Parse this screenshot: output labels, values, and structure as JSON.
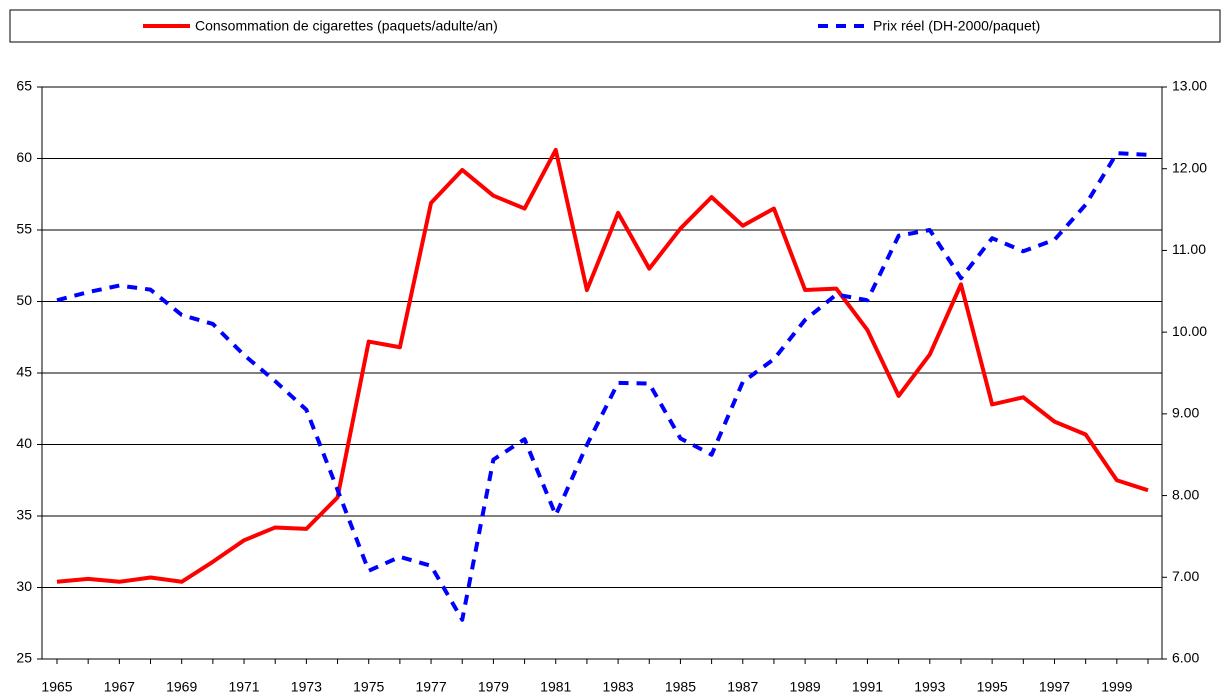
{
  "chart_data": {
    "type": "line",
    "categories": [
      1965,
      null,
      1967,
      null,
      1969,
      null,
      1971,
      null,
      1973,
      null,
      1975,
      null,
      1977,
      null,
      1979,
      null,
      1981,
      null,
      1983,
      null,
      1985,
      null,
      1987,
      null,
      1989,
      null,
      1991,
      null,
      1993,
      null,
      1995,
      null,
      1997,
      null,
      1999,
      null
    ],
    "series": [
      {
        "name": "Consommation de cigarettes (paquets/adulte/an)",
        "color": "#ff0000",
        "style": "solid",
        "axis": "y",
        "values": [
          30.4,
          30.6,
          30.4,
          30.7,
          30.4,
          31.8,
          33.3,
          34.2,
          34.1,
          36.3,
          47.2,
          46.8,
          56.9,
          59.2,
          57.4,
          56.5,
          60.6,
          50.8,
          56.2,
          52.3,
          55.1,
          57.3,
          55.3,
          56.5,
          50.8,
          50.9,
          48.0,
          43.4,
          46.3,
          51.2,
          42.8,
          43.3,
          41.6,
          40.7,
          37.5,
          36.8
        ]
      },
      {
        "name": "Prix réel (DH-2000/paquet)",
        "color": "#0000ff",
        "style": "dashed",
        "axis": "y2",
        "values": [
          10.39,
          10.49,
          10.57,
          10.52,
          10.21,
          10.1,
          9.72,
          9.4,
          9.05,
          8.07,
          7.08,
          7.25,
          7.14,
          6.48,
          8.44,
          8.69,
          7.76,
          8.62,
          9.38,
          9.37,
          8.7,
          8.5,
          9.39,
          9.67,
          10.15,
          10.46,
          10.39,
          11.18,
          11.25,
          10.66,
          11.15,
          10.99,
          11.13,
          11.56,
          12.19,
          12.17
        ]
      }
    ],
    "ylim": [
      25,
      65
    ],
    "yticks": [
      25,
      30,
      35,
      40,
      45,
      50,
      55,
      60,
      65
    ],
    "y2lim": [
      6,
      13
    ],
    "y2ticks": [
      {
        "value": 6,
        "label": "6.00"
      },
      {
        "value": 7,
        "label": "7.00"
      },
      {
        "value": 8,
        "label": "8.00"
      },
      {
        "value": 9,
        "label": "9.00"
      },
      {
        "value": 10,
        "label": "10.00"
      },
      {
        "value": 11,
        "label": "11.00"
      },
      {
        "value": 12,
        "label": "12.00"
      },
      {
        "value": 13,
        "label": "13.00"
      }
    ],
    "grid": true,
    "legend": "top"
  }
}
